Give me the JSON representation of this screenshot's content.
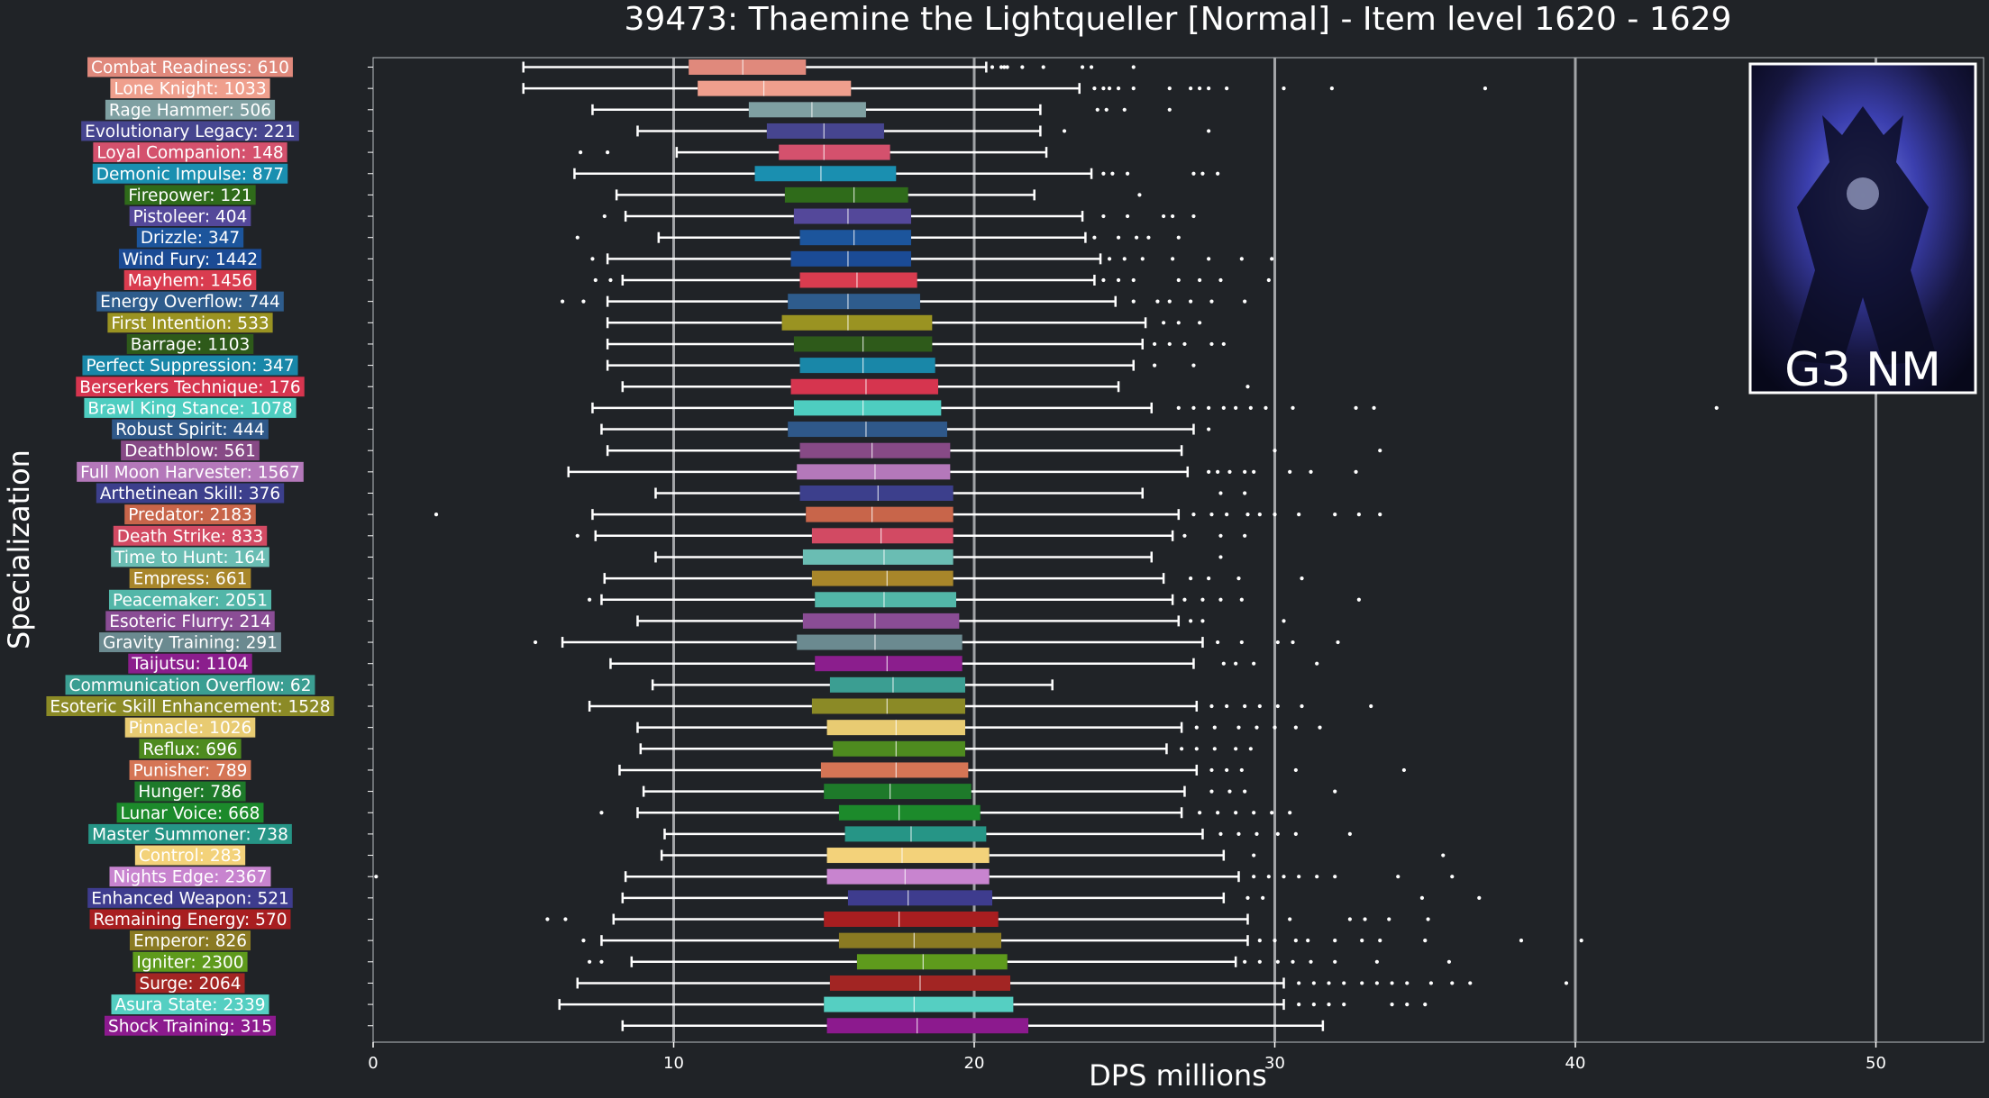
{
  "chart_data": {
    "type": "boxplot",
    "orientation": "horizontal",
    "title": "39473: Thaemine the Lightqueller [Normal] - Item level 1620 - 1629",
    "xlabel": "DPS millions",
    "ylabel": "Specialization",
    "xlim": [
      0,
      53
    ],
    "xticks": [
      0,
      10,
      20,
      30,
      40,
      50
    ],
    "grid": "vertical lines at x ticks 10-50",
    "badge_text": "G3 NM",
    "categories": [
      {
        "label": "Combat Readiness: 610",
        "color": "#e0897c",
        "whisker_low": 5.0,
        "q1": 10.5,
        "median": 12.3,
        "q3": 14.4,
        "whisker_high": 20.4,
        "outliers": [
          20.6,
          20.9,
          21.0,
          21.1,
          21.6,
          22.3,
          23.6,
          23.9,
          25.3
        ]
      },
      {
        "label": "Lone Knight: 1033",
        "color": "#ef9f8d",
        "whisker_low": 5.0,
        "q1": 10.8,
        "median": 13.0,
        "q3": 15.9,
        "whisker_high": 23.5,
        "outliers": [
          24.0,
          24.3,
          24.5,
          24.8,
          25.3,
          26.5,
          27.2,
          27.5,
          27.8,
          28.4,
          30.3,
          31.9,
          37.0
        ]
      },
      {
        "label": "Rage Hammer: 506",
        "color": "#7fa0a2",
        "whisker_low": 7.3,
        "q1": 12.5,
        "median": 14.6,
        "q3": 16.4,
        "whisker_high": 22.2,
        "outliers": [
          24.1,
          24.4,
          25.0,
          26.5
        ]
      },
      {
        "label": "Evolutionary Legacy: 221",
        "color": "#46458f",
        "whisker_low": 8.8,
        "q1": 13.1,
        "median": 15.0,
        "q3": 17.0,
        "whisker_high": 22.2,
        "outliers": [
          23.0,
          27.8
        ]
      },
      {
        "label": "Loyal Companion: 148",
        "color": "#d4516d",
        "whisker_low": 10.1,
        "q1": 13.5,
        "median": 15.0,
        "q3": 17.2,
        "whisker_high": 22.4,
        "outliers": [
          6.9,
          7.8
        ]
      },
      {
        "label": "Demonic Impulse: 877",
        "color": "#1a8fb0",
        "whisker_low": 6.7,
        "q1": 12.7,
        "median": 14.9,
        "q3": 17.4,
        "whisker_high": 23.9,
        "outliers": [
          24.3,
          24.6,
          25.1,
          27.3,
          27.6,
          28.1
        ]
      },
      {
        "label": "Firepower: 121",
        "color": "#2f6b1a",
        "whisker_low": 8.1,
        "q1": 13.7,
        "median": 16.0,
        "q3": 17.8,
        "whisker_high": 22.0,
        "outliers": [
          25.5
        ]
      },
      {
        "label": "Pistoleer: 404",
        "color": "#54489a",
        "whisker_low": 8.4,
        "q1": 14.0,
        "median": 15.8,
        "q3": 17.9,
        "whisker_high": 23.6,
        "outliers": [
          7.7,
          24.3,
          25.1,
          26.3,
          26.6,
          27.3
        ]
      },
      {
        "label": "Drizzle: 347",
        "color": "#1c559c",
        "whisker_low": 9.5,
        "q1": 14.2,
        "median": 16.0,
        "q3": 17.9,
        "whisker_high": 23.7,
        "outliers": [
          6.8,
          24.0,
          24.8,
          25.4,
          25.8,
          26.8
        ]
      },
      {
        "label": "Wind Fury: 1442",
        "color": "#1b4b95",
        "whisker_low": 7.8,
        "q1": 13.9,
        "median": 15.8,
        "q3": 17.9,
        "whisker_high": 24.2,
        "outliers": [
          7.3,
          24.5,
          25.0,
          25.6,
          26.6,
          27.8,
          28.9,
          29.9
        ]
      },
      {
        "label": "Mayhem: 1456",
        "color": "#d93c4f",
        "whisker_low": 8.3,
        "q1": 14.2,
        "median": 16.1,
        "q3": 18.1,
        "whisker_high": 24.0,
        "outliers": [
          7.4,
          7.9,
          24.3,
          24.8,
          25.3,
          26.8,
          27.5,
          28.2,
          29.8
        ]
      },
      {
        "label": "Energy Overflow: 744",
        "color": "#2e5c8c",
        "whisker_low": 7.8,
        "q1": 13.8,
        "median": 15.8,
        "q3": 18.2,
        "whisker_high": 24.7,
        "outliers": [
          6.3,
          7.0,
          25.3,
          26.1,
          26.5,
          27.2,
          27.9,
          29.0
        ]
      },
      {
        "label": "First Intention: 533",
        "color": "#9a9322",
        "whisker_low": 7.8,
        "q1": 13.6,
        "median": 15.8,
        "q3": 18.6,
        "whisker_high": 25.7,
        "outliers": [
          26.3,
          26.8,
          27.5
        ]
      },
      {
        "label": "Barrage: 1103",
        "color": "#2e5a1a",
        "whisker_low": 7.8,
        "q1": 14.0,
        "median": 16.3,
        "q3": 18.6,
        "whisker_high": 25.6,
        "outliers": [
          26.0,
          26.5,
          27.0,
          27.9,
          28.3
        ]
      },
      {
        "label": "Perfect Suppression: 347",
        "color": "#1987a8",
        "whisker_low": 7.8,
        "q1": 14.2,
        "median": 16.3,
        "q3": 18.7,
        "whisker_high": 25.3,
        "outliers": [
          26.0,
          27.3
        ]
      },
      {
        "label": "Berserkers Technique: 176",
        "color": "#d6354f",
        "whisker_low": 8.3,
        "q1": 13.9,
        "median": 16.4,
        "q3": 18.8,
        "whisker_high": 24.8,
        "outliers": [
          29.1
        ]
      },
      {
        "label": "Brawl King Stance: 1078",
        "color": "#4ecdc0",
        "whisker_low": 7.3,
        "q1": 14.0,
        "median": 16.3,
        "q3": 18.9,
        "whisker_high": 25.9,
        "outliers": [
          26.8,
          27.3,
          27.8,
          28.3,
          28.7,
          29.2,
          29.7,
          30.6,
          32.7,
          33.3,
          44.7
        ]
      },
      {
        "label": "Robust Spirit: 444",
        "color": "#2f5889",
        "whisker_low": 7.6,
        "q1": 13.8,
        "median": 16.4,
        "q3": 19.1,
        "whisker_high": 27.3,
        "outliers": [
          27.8
        ]
      },
      {
        "label": "Deathblow: 561",
        "color": "#874a86",
        "whisker_low": 7.8,
        "q1": 14.2,
        "median": 16.6,
        "q3": 19.2,
        "whisker_high": 26.9,
        "outliers": [
          30.0,
          33.5
        ]
      },
      {
        "label": "Full Moon Harvester: 1567",
        "color": "#b478ba",
        "whisker_low": 6.5,
        "q1": 14.1,
        "median": 16.7,
        "q3": 19.2,
        "whisker_high": 27.1,
        "outliers": [
          27.8,
          28.1,
          28.5,
          29.0,
          29.3,
          30.5,
          31.2,
          32.7
        ]
      },
      {
        "label": "Arthetinean Skill: 376",
        "color": "#3c3f8c",
        "whisker_low": 9.4,
        "q1": 14.2,
        "median": 16.8,
        "q3": 19.3,
        "whisker_high": 25.6,
        "outliers": [
          28.2,
          29.0
        ]
      },
      {
        "label": "Predator: 2183",
        "color": "#c8654a",
        "whisker_low": 7.3,
        "q1": 14.4,
        "median": 16.6,
        "q3": 19.3,
        "whisker_high": 26.8,
        "outliers": [
          2.1,
          27.3,
          27.9,
          28.4,
          29.1,
          29.5,
          30.0,
          30.8,
          32.0,
          32.8,
          33.5
        ]
      },
      {
        "label": "Death Strike: 833",
        "color": "#d24a63",
        "whisker_low": 7.4,
        "q1": 14.6,
        "median": 16.9,
        "q3": 19.3,
        "whisker_high": 26.6,
        "outliers": [
          6.8,
          27.0,
          28.2,
          29.0
        ]
      },
      {
        "label": "Time to Hunt: 164",
        "color": "#6abdb3",
        "whisker_low": 9.4,
        "q1": 14.3,
        "median": 17.0,
        "q3": 19.3,
        "whisker_high": 25.9,
        "outliers": [
          28.2
        ]
      },
      {
        "label": "Empress: 661",
        "color": "#a8862a",
        "whisker_low": 7.7,
        "q1": 14.6,
        "median": 17.1,
        "q3": 19.3,
        "whisker_high": 26.3,
        "outliers": [
          27.2,
          27.8,
          28.8,
          30.9
        ]
      },
      {
        "label": "Peacemaker: 2051",
        "color": "#52b6a8",
        "whisker_low": 7.6,
        "q1": 14.7,
        "median": 17.0,
        "q3": 19.4,
        "whisker_high": 26.6,
        "outliers": [
          7.2,
          27.0,
          27.6,
          28.2,
          28.9,
          32.8
        ]
      },
      {
        "label": "Esoteric Flurry: 214",
        "color": "#8a4d95",
        "whisker_low": 8.8,
        "q1": 14.3,
        "median": 16.7,
        "q3": 19.5,
        "whisker_high": 26.8,
        "outliers": [
          27.2,
          27.6,
          30.3
        ]
      },
      {
        "label": "Gravity Training: 291",
        "color": "#6b8a90",
        "whisker_low": 6.3,
        "q1": 14.1,
        "median": 16.7,
        "q3": 19.6,
        "whisker_high": 27.6,
        "outliers": [
          5.4,
          28.1,
          28.9,
          30.1,
          30.6,
          32.1
        ]
      },
      {
        "label": "Taijutsu: 1104",
        "color": "#8b1e8d",
        "whisker_low": 7.9,
        "q1": 14.7,
        "median": 17.1,
        "q3": 19.6,
        "whisker_high": 27.3,
        "outliers": [
          28.3,
          28.7,
          29.3,
          31.4
        ]
      },
      {
        "label": "Communication Overflow: 62",
        "color": "#3b9e92",
        "whisker_low": 9.3,
        "q1": 15.2,
        "median": 17.3,
        "q3": 19.7,
        "whisker_high": 22.6,
        "outliers": []
      },
      {
        "label": "Esoteric Skill Enhancement: 1528",
        "color": "#8b8a26",
        "whisker_low": 7.2,
        "q1": 14.6,
        "median": 17.1,
        "q3": 19.7,
        "whisker_high": 27.4,
        "outliers": [
          27.9,
          28.4,
          29.0,
          29.5,
          30.1,
          30.9,
          33.2
        ]
      },
      {
        "label": "Pinnacle: 1026",
        "color": "#e8cb72",
        "whisker_low": 8.8,
        "q1": 15.1,
        "median": 17.4,
        "q3": 19.7,
        "whisker_high": 26.9,
        "outliers": [
          27.4,
          28.0,
          28.8,
          29.4,
          30.0,
          30.7,
          31.5
        ]
      },
      {
        "label": "Reflux: 696",
        "color": "#4e8b1f",
        "whisker_low": 8.9,
        "q1": 15.3,
        "median": 17.4,
        "q3": 19.7,
        "whisker_high": 26.4,
        "outliers": [
          26.9,
          27.4,
          28.0,
          28.7,
          29.2
        ]
      },
      {
        "label": "Punisher: 789",
        "color": "#d57555",
        "whisker_low": 8.2,
        "q1": 14.9,
        "median": 17.4,
        "q3": 19.8,
        "whisker_high": 27.4,
        "outliers": [
          27.9,
          28.4,
          28.9,
          30.7,
          34.3
        ]
      },
      {
        "label": "Hunger: 786",
        "color": "#1e7a2a",
        "whisker_low": 9.0,
        "q1": 15.0,
        "median": 17.2,
        "q3": 19.9,
        "whisker_high": 27.0,
        "outliers": [
          27.9,
          28.5,
          29.0,
          32.0
        ]
      },
      {
        "label": "Lunar Voice: 668",
        "color": "#1c8a2b",
        "whisker_low": 8.8,
        "q1": 15.5,
        "median": 17.5,
        "q3": 20.2,
        "whisker_high": 26.9,
        "outliers": [
          7.6,
          27.5,
          28.1,
          28.7,
          29.3,
          29.9,
          30.5
        ]
      },
      {
        "label": "Master Summoner: 738",
        "color": "#269586",
        "whisker_low": 9.7,
        "q1": 15.7,
        "median": 17.9,
        "q3": 20.4,
        "whisker_high": 27.6,
        "outliers": [
          28.2,
          28.8,
          29.4,
          30.1,
          30.7,
          32.5
        ]
      },
      {
        "label": "Control: 283",
        "color": "#f3d27a",
        "whisker_low": 9.6,
        "q1": 15.1,
        "median": 17.6,
        "q3": 20.5,
        "whisker_high": 28.3,
        "outliers": [
          29.3,
          35.6
        ]
      },
      {
        "label": "Nights Edge: 2367",
        "color": "#c884cf",
        "whisker_low": 8.4,
        "q1": 15.1,
        "median": 17.7,
        "q3": 20.5,
        "whisker_high": 28.8,
        "outliers": [
          0.1,
          29.3,
          29.8,
          30.3,
          30.8,
          31.4,
          32.0,
          34.1,
          35.9
        ]
      },
      {
        "label": "Enhanced Weapon: 521",
        "color": "#3e3c8e",
        "whisker_low": 8.3,
        "q1": 15.8,
        "median": 17.8,
        "q3": 20.6,
        "whisker_high": 28.3,
        "outliers": [
          29.1,
          29.6,
          34.9,
          36.8
        ]
      },
      {
        "label": "Remaining Energy: 570",
        "color": "#a81e20",
        "whisker_low": 8.0,
        "q1": 15.0,
        "median": 17.5,
        "q3": 20.8,
        "whisker_high": 29.1,
        "outliers": [
          5.8,
          6.4,
          30.5,
          32.5,
          33.0,
          33.8,
          35.1
        ]
      },
      {
        "label": "Emperor: 826",
        "color": "#8a7a22",
        "whisker_low": 7.6,
        "q1": 15.5,
        "median": 18.0,
        "q3": 20.9,
        "whisker_high": 29.1,
        "outliers": [
          7.0,
          29.5,
          30.0,
          30.7,
          31.1,
          32.0,
          32.9,
          33.5,
          35.0,
          38.2,
          40.2
        ]
      },
      {
        "label": "Igniter: 2300",
        "color": "#5e9a1c",
        "whisker_low": 8.6,
        "q1": 16.1,
        "median": 18.3,
        "q3": 21.1,
        "whisker_high": 28.7,
        "outliers": [
          7.2,
          7.6,
          29.0,
          29.5,
          30.1,
          30.6,
          31.2,
          32.0,
          33.4,
          35.8
        ]
      },
      {
        "label": "Surge: 2064",
        "color": "#a22523",
        "whisker_low": 6.8,
        "q1": 15.2,
        "median": 18.2,
        "q3": 21.2,
        "whisker_high": 30.3,
        "outliers": [
          30.8,
          31.3,
          31.8,
          32.3,
          32.9,
          33.4,
          33.9,
          34.4,
          35.2,
          35.9,
          36.5,
          39.7
        ]
      },
      {
        "label": "Asura State: 2339",
        "color": "#55cfc2",
        "whisker_low": 6.2,
        "q1": 15.0,
        "median": 18.0,
        "q3": 21.3,
        "whisker_high": 30.3,
        "outliers": [
          30.8,
          31.3,
          31.8,
          32.3,
          33.9,
          34.4,
          35.0
        ]
      },
      {
        "label": "Shock Training: 315",
        "color": "#8c1a8e",
        "whisker_low": 8.3,
        "q1": 15.1,
        "median": 18.1,
        "q3": 21.8,
        "whisker_high": 31.6,
        "outliers": []
      }
    ]
  }
}
